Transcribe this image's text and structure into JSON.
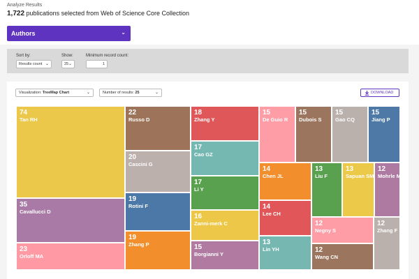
{
  "header": {
    "title": "Analyze Results",
    "count": "1,722",
    "count_suffix": "publications selected from Web of Science Core Collection"
  },
  "field_select": {
    "label": "Authors"
  },
  "filters": {
    "sort_label": "Sort by:",
    "sort_value": "Results count",
    "show_label": "Show:",
    "show_value": "25",
    "min_label": "Minimum record count:",
    "min_value": "1"
  },
  "panel": {
    "viz_label": "Visualization:",
    "viz_value": "TreeMap Chart",
    "num_label": "Number of results:",
    "num_value": "25",
    "download_label": "DOWNLOAD"
  },
  "chart_data": {
    "type": "treemap",
    "items": [
      {
        "name": "Tan RH",
        "value": 74,
        "color": "#ebc84a"
      },
      {
        "name": "Cavallucci D",
        "value": 35,
        "color": "#a97aa6"
      },
      {
        "name": "Orloff MA",
        "value": 23,
        "color": "#ff9aa5"
      },
      {
        "name": "Russo D",
        "value": 22,
        "color": "#9d7459"
      },
      {
        "name": "Cascini G",
        "value": 20,
        "color": "#bbb0ab"
      },
      {
        "name": "Rotini F",
        "value": 19,
        "color": "#4c78a7"
      },
      {
        "name": "Zhang P",
        "value": 19,
        "color": "#f28e2b"
      },
      {
        "name": "Zhang Y",
        "value": 18,
        "color": "#e05759"
      },
      {
        "name": "Cao GZ",
        "value": 17,
        "color": "#75b8b2"
      },
      {
        "name": "Li Y",
        "value": 17,
        "color": "#59a14f"
      },
      {
        "name": "Zanni-merk C",
        "value": 16,
        "color": "#edc848"
      },
      {
        "name": "Borgianni Y",
        "value": 15,
        "color": "#b07aa1"
      },
      {
        "name": "De Guio R",
        "value": 15,
        "color": "#ff9da6"
      },
      {
        "name": "Dubois S",
        "value": 15,
        "color": "#9c755f"
      },
      {
        "name": "Gao CQ",
        "value": 15,
        "color": "#bab0ac"
      },
      {
        "name": "Jiang P",
        "value": 15,
        "color": "#4e79a7"
      },
      {
        "name": "Chen JL",
        "value": 14,
        "color": "#f28e2b"
      },
      {
        "name": "Lee CH",
        "value": 14,
        "color": "#e15759"
      },
      {
        "name": "Lin YH",
        "value": 13,
        "color": "#76b7b2"
      },
      {
        "name": "Liu F",
        "value": 13,
        "color": "#59a14f"
      },
      {
        "name": "Sapuan SM",
        "value": 13,
        "color": "#edc949"
      },
      {
        "name": "Mohrle MG",
        "value": 12,
        "color": "#af7aa1"
      },
      {
        "name": "Negny S",
        "value": 12,
        "color": "#ff9da7"
      },
      {
        "name": "Wang CN",
        "value": 12,
        "color": "#9c755f"
      },
      {
        "name": "Zhang F",
        "value": 12,
        "color": "#bab0ac"
      }
    ]
  }
}
